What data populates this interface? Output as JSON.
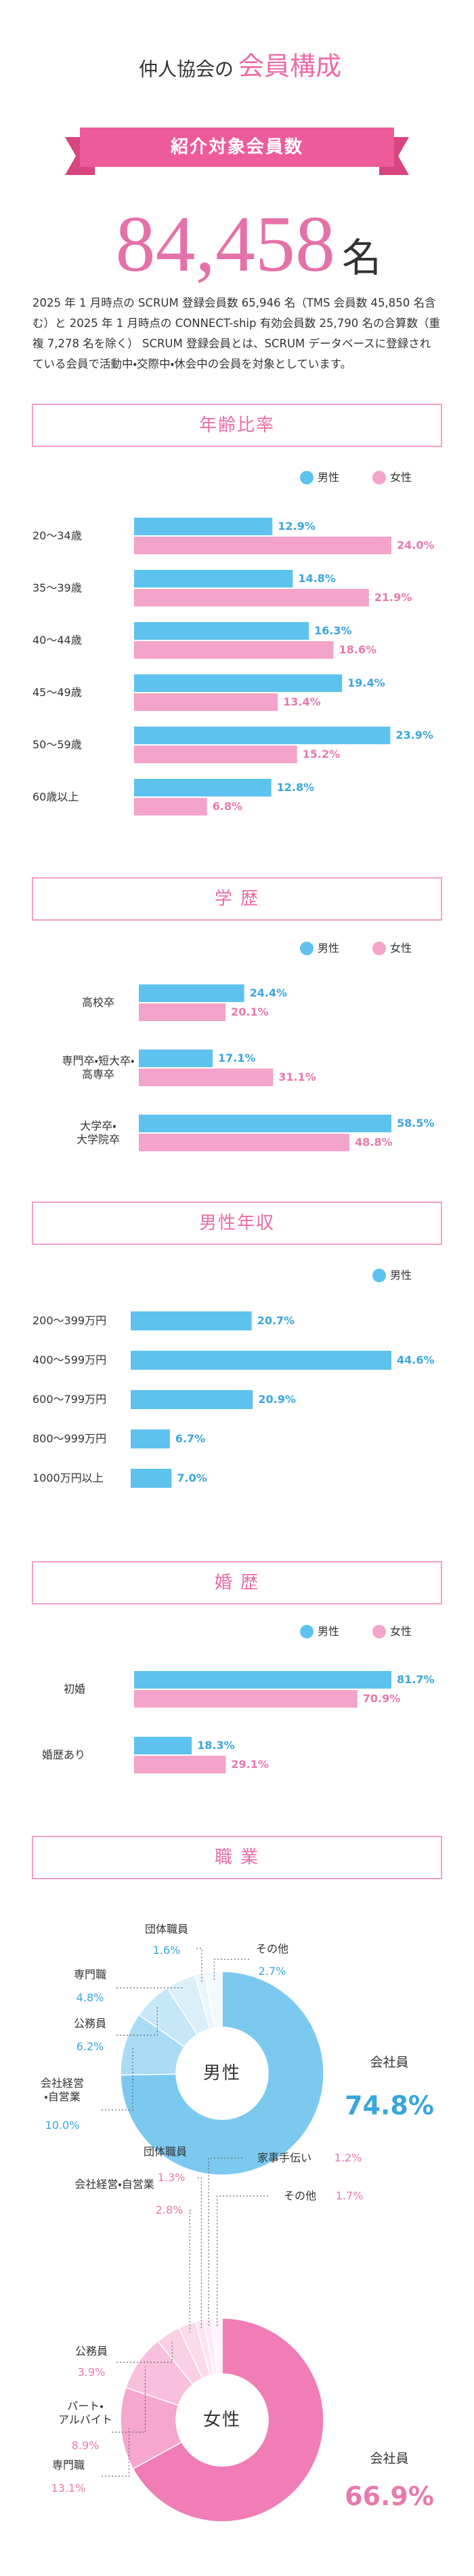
{
  "header": {
    "title_lead": "仲人協会の",
    "title_main": "会員構成",
    "banner": "紹介対象会員数",
    "total": "84,458",
    "unit": "名",
    "note": "2025 年 1 月時点の SCRUM 登録会員数 65,946 名（TMS 会員数 45,850 名含む）と 2025 年 1 月時点の CONNECT-ship 有効会員数 25,790 名の合算数（重複 7,278 名を除く） SCRUM 登録会員とは、SCRUM データベースに登録されている会員で活動中・交際中・休会中の会員を対象としています。"
  },
  "chart_data": [
    {
      "type": "hbar",
      "title": "年齢比率",
      "categories": [
        "20〜34歳",
        "35〜39歳",
        "40〜44歳",
        "45〜49歳",
        "50〜59歳",
        "60歳以上"
      ],
      "series": [
        {
          "name": "男性",
          "color": "#5ec2ee",
          "values": [
            12.9,
            14.8,
            16.3,
            19.4,
            23.9,
            12.8
          ],
          "value_labels": [
            "12.9%",
            "14.8%",
            "16.3%",
            "19.4%",
            "23.9%",
            "12.8%"
          ]
        },
        {
          "name": "女性",
          "color": "#f4a3ca",
          "values": [
            24.0,
            21.9,
            18.6,
            13.4,
            15.2,
            6.8
          ],
          "value_labels": [
            "24.0%",
            "21.9%",
            "18.6%",
            "13.4%",
            "15.2%",
            "6.8%"
          ]
        }
      ]
    },
    {
      "type": "hbar",
      "title": "学 歴",
      "categories": [
        "高校卒",
        "専門卒・短大卒・\n高専卒",
        "大学卒・\n大学院卒"
      ],
      "series": [
        {
          "name": "男性",
          "color": "#5ec2ee",
          "values": [
            24.4,
            17.1,
            58.5
          ],
          "value_labels": [
            "24.4%",
            "17.1%",
            "58.5%"
          ]
        },
        {
          "name": "女性",
          "color": "#f4a3ca",
          "values": [
            20.1,
            31.1,
            48.8
          ],
          "value_labels": [
            "20.1%",
            "31.1%",
            "48.8%"
          ]
        }
      ]
    },
    {
      "type": "hbar",
      "title": "男性年収",
      "categories": [
        "200〜399万円",
        "400〜599万円",
        "600〜799万円",
        "800〜999万円",
        "1000万円以上"
      ],
      "series": [
        {
          "name": "男性",
          "color": "#5ec2ee",
          "values": [
            20.7,
            44.6,
            20.9,
            6.7,
            7.0
          ],
          "value_labels": [
            "20.7%",
            "44.6%",
            "20.9%",
            "6.7%",
            "7.0%"
          ]
        }
      ]
    },
    {
      "type": "hbar",
      "title": "婚 歴",
      "categories": [
        "初婚",
        "婚歴あり"
      ],
      "series": [
        {
          "name": "男性",
          "color": "#5ec2ee",
          "values": [
            81.7,
            18.3
          ],
          "value_labels": [
            "81.7%",
            "18.3%"
          ]
        },
        {
          "name": "女性",
          "color": "#f4a3ca",
          "values": [
            70.9,
            29.1
          ],
          "value_labels": [
            "70.9%",
            "29.1%"
          ]
        }
      ]
    },
    {
      "type": "donut",
      "title": "職 業",
      "center_label": "男性",
      "categories": [
        "会社員",
        "会社経営\n・自営業",
        "公務員",
        "専門職",
        "団体職員",
        "その他"
      ],
      "values": [
        74.8,
        10.0,
        6.2,
        4.8,
        1.6,
        2.7
      ],
      "value_labels": [
        "74.8%",
        "10.0%",
        "6.2%",
        "4.8%",
        "1.6%",
        "2.7%"
      ],
      "colors": [
        "#7cc9f0",
        "#a9dbf5",
        "#c6e7f8",
        "#dbeffa",
        "#eaf6fc",
        "#f3fafe"
      ],
      "label_color": "#3aa6dc"
    },
    {
      "type": "donut",
      "center_label": "女性",
      "categories": [
        "会社員",
        "専門職",
        "パート・\nアルバイト",
        "公務員",
        "会社経営・自営業",
        "団体職員",
        "家事手伝い",
        "その他"
      ],
      "values": [
        66.9,
        13.1,
        8.9,
        3.9,
        2.8,
        1.3,
        1.2,
        1.7
      ],
      "value_labels": [
        "66.9%",
        "13.1%",
        "8.9%",
        "3.9%",
        "2.8%",
        "1.3%",
        "1.2%",
        "1.7%"
      ],
      "colors": [
        "#f07db5",
        "#f5a7cd",
        "#f8c0dc",
        "#fad0e5",
        "#fbdbeb",
        "#fce4f0",
        "#fdecf4",
        "#fef4f9"
      ],
      "label_color": "#e879ae"
    }
  ]
}
